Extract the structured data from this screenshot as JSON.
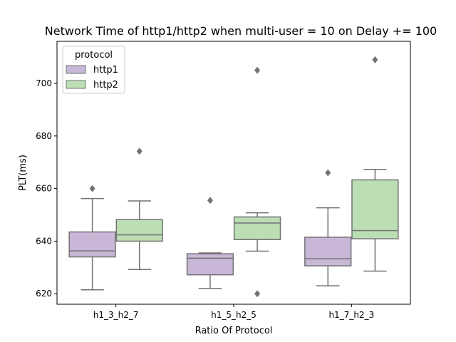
{
  "chart_data": {
    "type": "box",
    "title": "Network Time of http1/http2 when multi-user = 10 on Delay += 100",
    "xlabel": "Ratio Of Protocol",
    "ylabel": "PLT(ms)",
    "ylim": [
      616,
      716
    ],
    "yticks": [
      620,
      640,
      660,
      680,
      700
    ],
    "categories": [
      "h1_3_h2_7",
      "h1_5_h2_5",
      "h1_7_h2_3"
    ],
    "legend": {
      "title": "protocol",
      "position": "top-left"
    },
    "series": [
      {
        "name": "http1",
        "color": "#c8b7d6",
        "boxes": [
          {
            "whisker_low": 621.5,
            "q1": 634,
            "median": 636.3,
            "q3": 643.5,
            "whisker_high": 656.2,
            "outliers": [
              660
            ]
          },
          {
            "whisker_low": 622,
            "q1": 627.2,
            "median": 633.5,
            "q3": 635.2,
            "whisker_high": 635.5,
            "outliers": [
              655.5
            ]
          },
          {
            "whisker_low": 623,
            "q1": 630.6,
            "median": 633.3,
            "q3": 641.5,
            "whisker_high": 652.7,
            "outliers": [
              666
            ]
          }
        ]
      },
      {
        "name": "http2",
        "color": "#bcdeb5",
        "boxes": [
          {
            "whisker_low": 629.2,
            "q1": 640,
            "median": 642.4,
            "q3": 648.2,
            "whisker_high": 655.3,
            "outliers": [
              674.2
            ]
          },
          {
            "whisker_low": 636.2,
            "q1": 640.6,
            "median": 646.9,
            "q3": 649.2,
            "whisker_high": 650.8,
            "outliers": [
              705,
              620
            ]
          },
          {
            "whisker_low": 628.6,
            "q1": 640.9,
            "median": 644,
            "q3": 663.3,
            "whisker_high": 667.3,
            "outliers": [
              709
            ]
          }
        ]
      }
    ]
  }
}
